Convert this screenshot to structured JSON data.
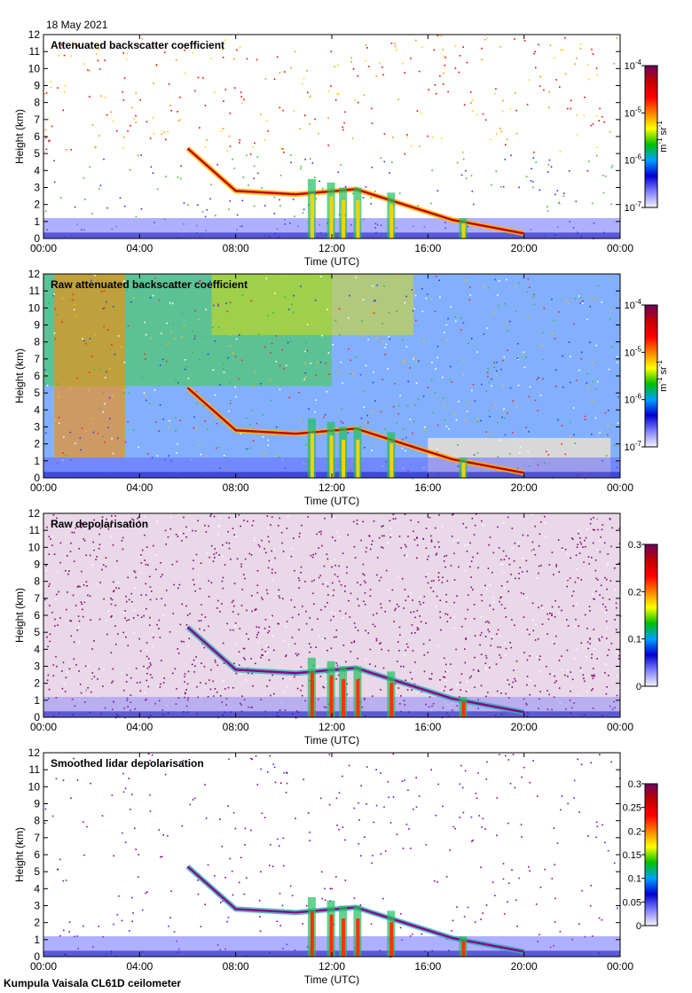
{
  "date": "18 May 2021",
  "footer": "Kumpula Vaisala CL61D ceilometer",
  "colors": {
    "cbar_stops": [
      "#f4f4f8",
      "#8080ff",
      "#0000d0",
      "#00a0ff",
      "#00c000",
      "#ffff00",
      "#ff8000",
      "#ff0000",
      "#c00000",
      "#700060"
    ]
  },
  "chart_data": [
    {
      "type": "heatmap",
      "title": "Attenuated backscatter coefficient",
      "xlabel": "Time (UTC)",
      "ylabel": "Height (km)",
      "x_ticks": [
        "00:00",
        "04:00",
        "08:00",
        "12:00",
        "16:00",
        "20:00",
        "00:00"
      ],
      "y_ticks": [
        "0",
        "1",
        "2",
        "3",
        "4",
        "5",
        "6",
        "7",
        "8",
        "9",
        "10",
        "11",
        "12"
      ],
      "ylim": [
        0,
        12
      ],
      "colorbar": {
        "scale": "log",
        "range": [
          1e-07,
          0.0001
        ],
        "ticks": [
          {
            "base": "10",
            "exp": "-7"
          },
          {
            "base": "10",
            "exp": "-6"
          },
          {
            "base": "10",
            "exp": "-5"
          },
          {
            "base": "10",
            "exp": "-4"
          }
        ],
        "unit": {
          "m": "m",
          "m_exp": "-1",
          "sr": "sr",
          "sr_exp": "-1"
        }
      },
      "cloud_layer_height_km": [
        [
          6.0,
          5.3
        ],
        [
          8.0,
          2.8
        ],
        [
          10.5,
          2.6
        ],
        [
          13.0,
          2.9
        ],
        [
          15.0,
          2.0
        ],
        [
          17.0,
          1.1
        ],
        [
          20.0,
          0.3
        ]
      ]
    },
    {
      "type": "heatmap",
      "title": "Raw attenuated backscatter coefficient",
      "xlabel": "Time (UTC)",
      "ylabel": "Height (km)",
      "x_ticks": [
        "00:00",
        "04:00",
        "08:00",
        "12:00",
        "16:00",
        "20:00",
        "00:00"
      ],
      "y_ticks": [
        "0",
        "1",
        "2",
        "3",
        "4",
        "5",
        "6",
        "7",
        "8",
        "9",
        "10",
        "11",
        "12"
      ],
      "ylim": [
        0,
        12
      ],
      "colorbar": {
        "scale": "log",
        "range": [
          1e-07,
          0.0001
        ],
        "ticks": [
          {
            "base": "10",
            "exp": "-7"
          },
          {
            "base": "10",
            "exp": "-6"
          },
          {
            "base": "10",
            "exp": "-5"
          },
          {
            "base": "10",
            "exp": "-4"
          }
        ],
        "unit": {
          "m": "m",
          "m_exp": "-1",
          "sr": "sr",
          "sr_exp": "-1"
        }
      },
      "cloud_layer_height_km": [
        [
          6.0,
          5.3
        ],
        [
          8.0,
          2.8
        ],
        [
          10.5,
          2.6
        ],
        [
          13.0,
          2.9
        ],
        [
          15.0,
          2.0
        ],
        [
          17.0,
          1.1
        ],
        [
          20.0,
          0.3
        ]
      ]
    },
    {
      "type": "heatmap",
      "title": "Raw depolarisation",
      "xlabel": "Time (UTC)",
      "ylabel": "Height (km)",
      "x_ticks": [
        "00:00",
        "04:00",
        "08:00",
        "12:00",
        "16:00",
        "20:00",
        "00:00"
      ],
      "y_ticks": [
        "0",
        "1",
        "2",
        "3",
        "4",
        "5",
        "6",
        "7",
        "8",
        "9",
        "10",
        "11",
        "12"
      ],
      "ylim": [
        0,
        12
      ],
      "colorbar": {
        "scale": "linear",
        "range": [
          0,
          0.3
        ],
        "ticks": [
          "0",
          "0.1",
          "0.2",
          "0.3"
        ]
      }
    },
    {
      "type": "heatmap",
      "title": "Smoothed lidar depolarisation",
      "xlabel": "Time (UTC)",
      "ylabel": "Height (km)",
      "x_ticks": [
        "00:00",
        "04:00",
        "08:00",
        "12:00",
        "16:00",
        "20:00",
        "00:00"
      ],
      "y_ticks": [
        "0",
        "1",
        "2",
        "3",
        "4",
        "5",
        "6",
        "7",
        "8",
        "9",
        "10",
        "11",
        "12"
      ],
      "ylim": [
        0,
        12
      ],
      "colorbar": {
        "scale": "linear",
        "range": [
          0,
          0.3
        ],
        "ticks": [
          "0",
          "0.05",
          "0.1",
          "0.15",
          "0.2",
          "0.25",
          "0.3"
        ]
      }
    }
  ]
}
